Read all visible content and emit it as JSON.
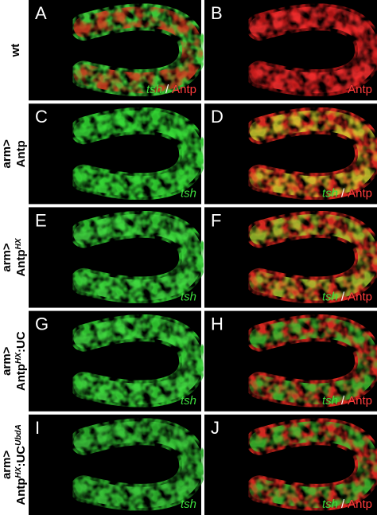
{
  "rows": [
    {
      "label": [
        [
          {
            "text": "wt"
          }
        ]
      ],
      "panels": [
        {
          "letter": "A",
          "caption": [
            {
              "text": "tsh",
              "italic": true,
              "color": "#3ddc3d"
            },
            {
              "text": "/",
              "color": "#ffffff"
            },
            {
              "text": "Antp",
              "color": "#ff3b3b"
            }
          ]
        },
        {
          "letter": "B",
          "caption": [
            {
              "text": "Antp",
              "color": "#ff3b3b"
            }
          ]
        }
      ]
    },
    {
      "label": [
        [
          {
            "text": "arm>"
          }
        ],
        [
          {
            "text": "Antp"
          }
        ]
      ],
      "panels": [
        {
          "letter": "C",
          "caption": [
            {
              "text": "tsh",
              "italic": true,
              "color": "#3ddc3d"
            }
          ]
        },
        {
          "letter": "D",
          "caption": [
            {
              "text": "tsh",
              "italic": true,
              "color": "#3ddc3d"
            },
            {
              "text": "/",
              "color": "#ffffff"
            },
            {
              "text": "Antp",
              "color": "#ff3b3b"
            }
          ]
        }
      ]
    },
    {
      "label": [
        [
          {
            "text": "arm>"
          }
        ],
        [
          {
            "text": "Antp"
          },
          {
            "text": "HX",
            "sup": true,
            "italic": true
          }
        ]
      ],
      "panels": [
        {
          "letter": "E",
          "caption": [
            {
              "text": "tsh",
              "italic": true,
              "color": "#3ddc3d"
            }
          ]
        },
        {
          "letter": "F",
          "caption": [
            {
              "text": "tsh",
              "italic": true,
              "color": "#3ddc3d"
            },
            {
              "text": "/",
              "color": "#ffffff"
            },
            {
              "text": "Antp",
              "color": "#ff3b3b"
            }
          ]
        }
      ]
    },
    {
      "label": [
        [
          {
            "text": "arm>"
          }
        ],
        [
          {
            "text": "Antp"
          },
          {
            "text": "HX",
            "sup": true,
            "italic": true
          },
          {
            "text": ":UC"
          }
        ]
      ],
      "panels": [
        {
          "letter": "G",
          "caption": [
            {
              "text": "tsh",
              "italic": true,
              "color": "#3ddc3d"
            }
          ]
        },
        {
          "letter": "H",
          "caption": [
            {
              "text": "tsh",
              "italic": true,
              "color": "#3ddc3d"
            },
            {
              "text": "/",
              "color": "#ffffff"
            },
            {
              "text": "Antp",
              "color": "#ff3b3b"
            }
          ]
        }
      ]
    },
    {
      "label": [
        [
          {
            "text": "arm>"
          }
        ],
        [
          {
            "text": "Antp"
          },
          {
            "text": "HX",
            "sup": true,
            "italic": true
          },
          {
            "text": ":UC"
          },
          {
            "text": "UbdA",
            "sup": true,
            "italic": true
          }
        ]
      ],
      "panels": [
        {
          "letter": "I",
          "caption": [
            {
              "text": "tsh",
              "italic": true,
              "color": "#3ddc3d"
            }
          ]
        },
        {
          "letter": "J",
          "caption": [
            {
              "text": "tsh",
              "italic": true,
              "color": "#3ddc3d"
            },
            {
              "text": "/",
              "color": "#ffffff"
            },
            {
              "text": "Antp",
              "color": "#ff3b3b"
            }
          ]
        }
      ]
    }
  ]
}
